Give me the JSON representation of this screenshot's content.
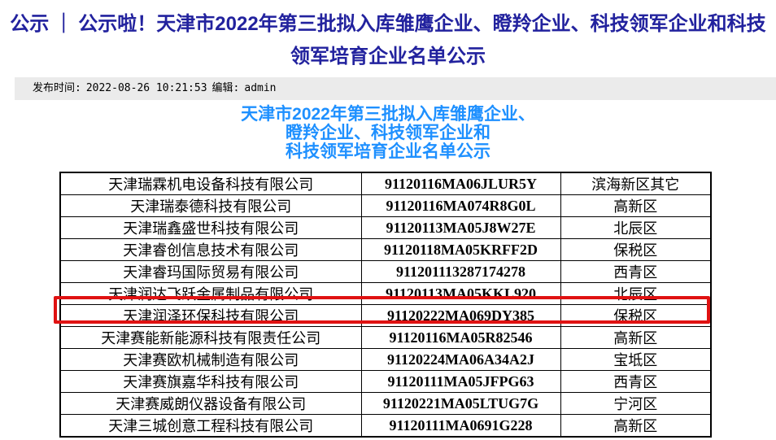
{
  "colors": {
    "title": "#22229e",
    "subtitle": "#1e90ff",
    "highlight": "#e01212",
    "meta_bar_bg": "#ebebeb"
  },
  "title": {
    "line1_prefix": "公示",
    "divider": "｜",
    "line1_rest": "公示啦！天津市2022年第三批拟入库雏鹰企业、瞪羚企业、科技领军企业和科技",
    "line2": "领军培育企业名单公示"
  },
  "meta": {
    "publish_label": "发布时间:",
    "publish_time": "2022-08-26 10:21:53",
    "editor_label": "编辑:",
    "editor_name": "admin"
  },
  "subtitle": {
    "lines": [
      "天津市2022年第三批拟入库雏鹰企业、",
      "瞪羚企业、科技领军企业和",
      "科技领军培育企业名单公示"
    ]
  },
  "table": {
    "rows": [
      {
        "company": "天津瑞霖机电设备科技有限公司",
        "code": "91120116MA06JLUR5Y",
        "district": "滨海新区其它",
        "highlighted": false
      },
      {
        "company": "天津瑞泰德科技有限公司",
        "code": "91120116MA074R8G0L",
        "district": "高新区",
        "highlighted": false
      },
      {
        "company": "天津瑞鑫盛世科技有限公司",
        "code": "91120113MA05J8W27E",
        "district": "北辰区",
        "highlighted": false
      },
      {
        "company": "天津睿创信息技术有限公司",
        "code": "91120118MA05KRFF2D",
        "district": "保税区",
        "highlighted": false
      },
      {
        "company": "天津睿玛国际贸易有限公司",
        "code": "911201113287174278",
        "district": "西青区",
        "highlighted": false
      },
      {
        "company": "天津润达飞跃金属制品有限公司",
        "code": "91120113MA05KKL920",
        "district": "北辰区",
        "highlighted": false
      },
      {
        "company": "天津润泽环保科技有限公司",
        "code": "91120222MA069DY385",
        "district": "保税区",
        "highlighted": true
      },
      {
        "company": "天津赛能新能源科技有限责任公司",
        "code": "91120116MA05R82546",
        "district": "高新区",
        "highlighted": false
      },
      {
        "company": "天津赛欧机械制造有限公司",
        "code": "91120224MA06A34A2J",
        "district": "宝坻区",
        "highlighted": false
      },
      {
        "company": "天津赛旗嘉华科技有限公司",
        "code": "91120111MA05JFPG63",
        "district": "西青区",
        "highlighted": false
      },
      {
        "company": "天津赛威朗仪器设备有限公司",
        "code": "91120221MA05LTUG7G",
        "district": "宁河区",
        "highlighted": false
      },
      {
        "company": "天津三城创意工程科技有限公司",
        "code": "91120111MA0691G228",
        "district": "高新区",
        "highlighted": false
      }
    ]
  }
}
